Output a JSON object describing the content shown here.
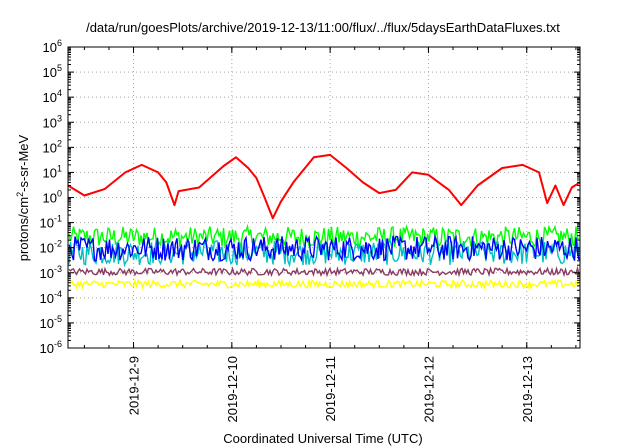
{
  "chart_data": {
    "type": "line",
    "title": "/data/run/goesPlots/archive/2019-12-13/11:00/flux/../flux/5daysEarthDataFluxes.txt",
    "xlabel": "Coordinated Universal Time (UTC)",
    "ylabel": {
      "base": "protons/cm",
      "sup": "2",
      "rest": "-s-sr-MeV"
    },
    "y_scale": "log",
    "ylim": [
      1e-06,
      1000000.0
    ],
    "y_ticks": [
      {
        "value": 1e-06,
        "base": "10",
        "exp": "-6"
      },
      {
        "value": 1e-05,
        "base": "10",
        "exp": "-5"
      },
      {
        "value": 0.0001,
        "base": "10",
        "exp": "-4"
      },
      {
        "value": 0.001,
        "base": "10",
        "exp": "-3"
      },
      {
        "value": 0.01,
        "base": "10",
        "exp": "-2"
      },
      {
        "value": 0.1,
        "base": "10",
        "exp": "-1"
      },
      {
        "value": 1,
        "base": "10",
        "exp": "0"
      },
      {
        "value": 10,
        "base": "10",
        "exp": "1"
      },
      {
        "value": 100,
        "base": "10",
        "exp": "2"
      },
      {
        "value": 1000,
        "base": "10",
        "exp": "3"
      },
      {
        "value": 10000,
        "base": "10",
        "exp": "4"
      },
      {
        "value": 100000,
        "base": "10",
        "exp": "5"
      },
      {
        "value": 1000000,
        "base": "10",
        "exp": "6"
      }
    ],
    "xlim": [
      "2019-12-08T08:00",
      "2019-12-13T13:00"
    ],
    "x_ticks": [
      "2019-12-9",
      "2019-12-10",
      "2019-12-11",
      "2019-12-12",
      "2019-12-13"
    ],
    "grid": true,
    "colors": {
      "red": "#ff0000",
      "green": "#00ff00",
      "cyan": "#00c0c0",
      "blue": "#0000ff",
      "purple": "#8b3a62",
      "yellow": "#ffff00"
    },
    "series": [
      {
        "color": "red",
        "points": [
          [
            "2019-12-08T08:00",
            3
          ],
          [
            "2019-12-08T12:00",
            1.2
          ],
          [
            "2019-12-08T17:00",
            2.2
          ],
          [
            "2019-12-08T22:00",
            10
          ],
          [
            "2019-12-09T02:00",
            20
          ],
          [
            "2019-12-09T06:00",
            10
          ],
          [
            "2019-12-09T08:00",
            4
          ],
          [
            "2019-12-09T10:00",
            0.5
          ],
          [
            "2019-12-09T11:00",
            1.8
          ],
          [
            "2019-12-09T16:00",
            2.5
          ],
          [
            "2019-12-09T22:00",
            18
          ],
          [
            "2019-12-10T01:00",
            40
          ],
          [
            "2019-12-10T04:00",
            15
          ],
          [
            "2019-12-10T06:00",
            6
          ],
          [
            "2019-12-10T08:00",
            1
          ],
          [
            "2019-12-10T10:00",
            0.15
          ],
          [
            "2019-12-10T12:00",
            0.7
          ],
          [
            "2019-12-10T15:00",
            4
          ],
          [
            "2019-12-10T20:00",
            40
          ],
          [
            "2019-12-11T00:00",
            50
          ],
          [
            "2019-12-11T04:00",
            15
          ],
          [
            "2019-12-11T08:00",
            4
          ],
          [
            "2019-12-11T12:00",
            1.5
          ],
          [
            "2019-12-11T16:00",
            2
          ],
          [
            "2019-12-11T20:00",
            10
          ],
          [
            "2019-12-12T00:00",
            8
          ],
          [
            "2019-12-12T05:00",
            2
          ],
          [
            "2019-12-12T08:00",
            0.5
          ],
          [
            "2019-12-12T12:00",
            3
          ],
          [
            "2019-12-12T18:00",
            15
          ],
          [
            "2019-12-12T23:00",
            20
          ],
          [
            "2019-12-13T03:00",
            10
          ],
          [
            "2019-12-13T05:00",
            0.6
          ],
          [
            "2019-12-13T07:00",
            3
          ],
          [
            "2019-12-13T09:00",
            0.5
          ],
          [
            "2019-12-13T11:00",
            2.5
          ],
          [
            "2019-12-13T13:00",
            4
          ]
        ]
      },
      {
        "color": "green",
        "band": [
          0.01,
          0.07
        ]
      },
      {
        "color": "cyan",
        "band": [
          0.002,
          0.02
        ]
      },
      {
        "color": "blue",
        "band": [
          0.003,
          0.03
        ]
      },
      {
        "color": "purple",
        "band": [
          0.0008,
          0.0015
        ]
      },
      {
        "color": "yellow",
        "band": [
          0.00025,
          0.0005
        ]
      }
    ]
  }
}
